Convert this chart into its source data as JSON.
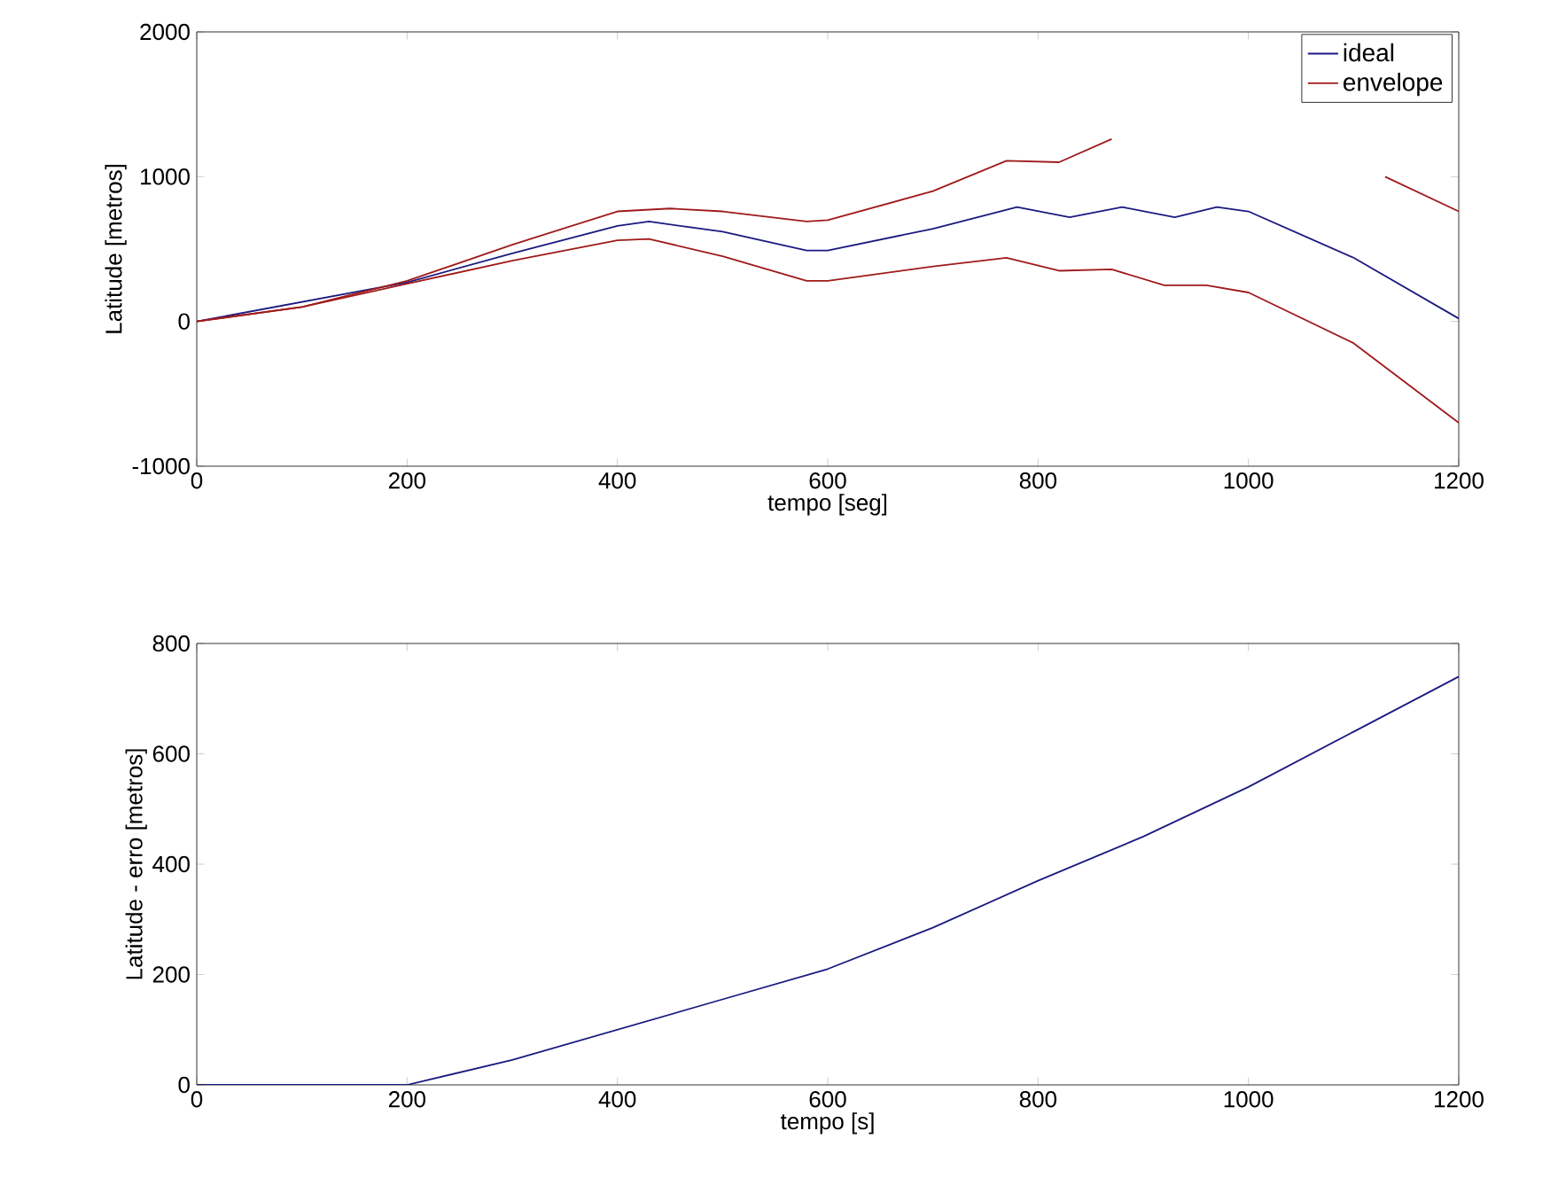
{
  "chart_data": [
    {
      "type": "line",
      "xlabel": "tempo [seg]",
      "ylabel": "Latitude  [metros]",
      "xlim": [
        0,
        1200
      ],
      "ylim": [
        -1000,
        2000
      ],
      "xticks": [
        0,
        200,
        400,
        600,
        800,
        1000,
        1200
      ],
      "yticks": [
        -1000,
        0,
        1000,
        2000
      ],
      "legend": "top right",
      "grid": false,
      "series": [
        {
          "name": "ideal",
          "color": "#1a1a80",
          "x": [
            0,
            200,
            300,
            400,
            430,
            500,
            580,
            600,
            700,
            780,
            830,
            880,
            930,
            970,
            1000,
            1100,
            1200
          ],
          "values": [
            0,
            270,
            470,
            660,
            690,
            620,
            490,
            490,
            640,
            790,
            720,
            790,
            720,
            790,
            760,
            440,
            20
          ]
        },
        {
          "name": "envelope",
          "color": "#a01a1a",
          "x": [
            0,
            100,
            200,
            300,
            400,
            450,
            500,
            580,
            600,
            700,
            770,
            820,
            870,
            950,
            1000,
            1050,
            1130,
            1200
          ],
          "values": [
            0,
            100,
            280,
            530,
            760,
            780,
            760,
            690,
            700,
            900,
            1110,
            1100,
            1260,
            null,
            null,
            null,
            1000,
            760
          ]
        },
        {
          "color": "#a01a1a",
          "x": [
            0,
            100,
            200,
            300,
            400,
            430,
            500,
            580,
            600,
            700,
            770,
            820,
            870,
            920,
            960,
            1000,
            1100,
            1200
          ],
          "values": [
            0,
            100,
            260,
            420,
            560,
            570,
            450,
            280,
            280,
            380,
            440,
            350,
            360,
            250,
            250,
            200,
            -150,
            -700
          ]
        }
      ]
    },
    {
      "type": "line",
      "xlabel": "tempo [s]",
      "ylabel": "Latitude - erro [metros]",
      "xlim": [
        0,
        1200
      ],
      "ylim": [
        0,
        800
      ],
      "xticks": [
        0,
        200,
        400,
        600,
        800,
        1000,
        1200
      ],
      "yticks": [
        0,
        200,
        400,
        600,
        800
      ],
      "grid": false,
      "series": [
        {
          "color": "#1a1a80",
          "x": [
            0,
            100,
            200,
            300,
            400,
            500,
            600,
            700,
            800,
            900,
            1000,
            1100,
            1200
          ],
          "values": [
            0,
            0,
            0,
            45,
            100,
            155,
            210,
            285,
            370,
            450,
            540,
            640,
            740
          ]
        }
      ]
    }
  ]
}
